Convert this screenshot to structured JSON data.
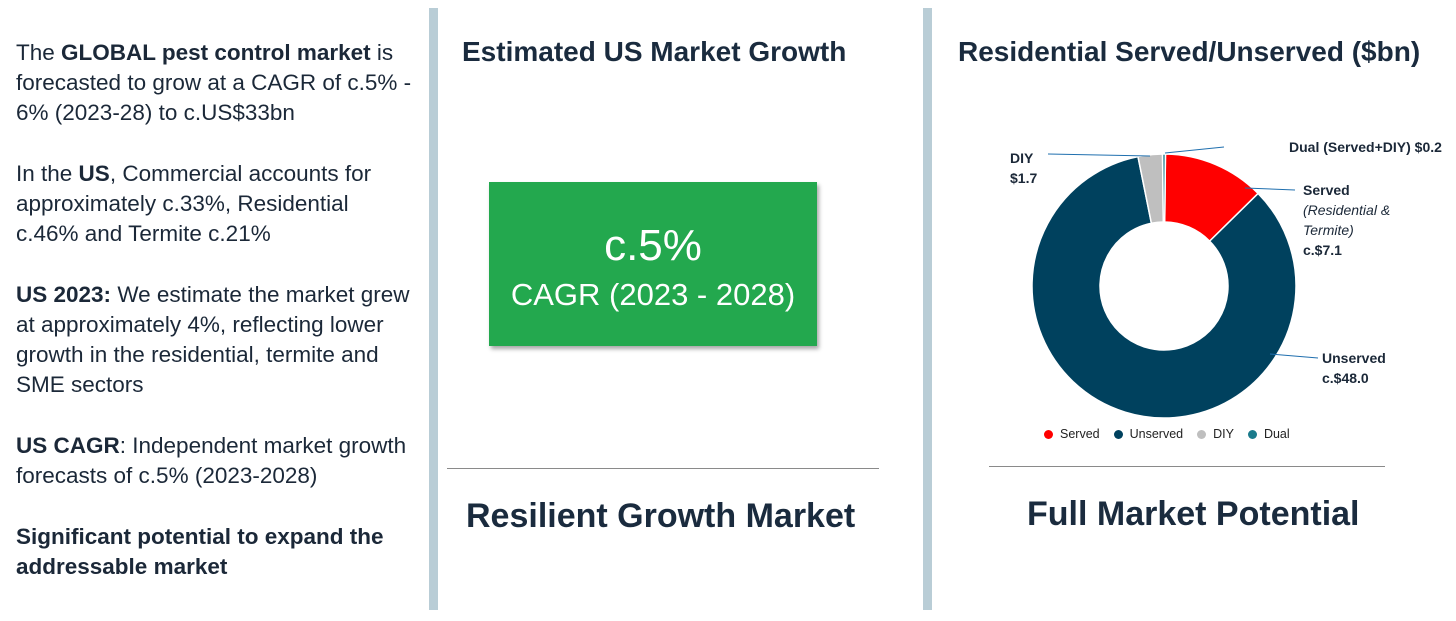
{
  "left": {
    "p1": {
      "a": "The ",
      "b": "GLOBAL pest control market",
      "c": " is forecasted to grow at a CAGR of c.5% - 6% (2023-28) to c.US$33bn"
    },
    "p2": {
      "a": "In the ",
      "b": "US",
      "c": ", Commercial accounts for approximately c.33%, Residential c.46% and Termite c.21%"
    },
    "p3": {
      "b": "US 2023:",
      "c": " We estimate the market grew at approximately 4%, reflecting lower growth in the residential, termite and SME sectors"
    },
    "p4": {
      "b": "US CAGR",
      "c": ": Independent market growth forecasts of c.5% (2023-2028)"
    },
    "p5": {
      "b": "Significant potential to expand the addressable market"
    }
  },
  "middle": {
    "heading": "Estimated US Market Growth",
    "cagr_value": "c.5%",
    "cagr_label": "CAGR (2023 - 2028)",
    "footer": "Resilient Growth Market"
  },
  "right": {
    "heading": "Residential Served/Unserved ($bn)",
    "footer": "Full Market Potential",
    "callouts": {
      "diy_name": "DIY",
      "diy_value": "$1.7",
      "dual": "Dual (Served+DIY) $0.2",
      "served_name": "Served",
      "served_note_1": "(Residential &",
      "served_note_2": "Termite)",
      "served_value": "c.$7.1",
      "unserved_name": "Unserved",
      "unserved_value": "c.$48.0"
    }
  },
  "chart_data": {
    "type": "pie",
    "variant": "donut",
    "title": "Residential Served/Unserved ($bn)",
    "categories": [
      "Served",
      "Unserved",
      "DIY",
      "Dual"
    ],
    "values": [
      7.1,
      48.0,
      1.7,
      0.2
    ],
    "colors": [
      "#ff0000",
      "#00415e",
      "#bfbfbf",
      "#1b7b8c"
    ],
    "legend": "bottom"
  }
}
